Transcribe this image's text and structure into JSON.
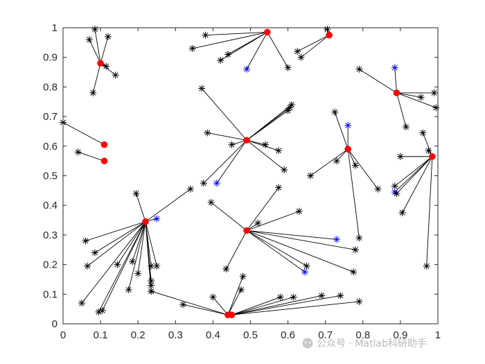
{
  "watermark": {
    "text": "公众号 · Matlab科研助手",
    "icon": "wechat-bubble-icon"
  },
  "colors": {
    "edge": "#000000",
    "node_black": "#000000",
    "node_blue": "#0000ff",
    "center": "#ff0000",
    "axis": "#262626",
    "watermark": "#b9b9b9"
  },
  "chart_data": {
    "type": "scatter",
    "title": "",
    "xlabel": "",
    "ylabel": "",
    "xlim": [
      0,
      1
    ],
    "ylim": [
      0,
      1
    ],
    "xticks": [
      "0",
      "0.1",
      "0.2",
      "0.3",
      "0.4",
      "0.5",
      "0.6",
      "0.7",
      "0.8",
      "0.9",
      "1"
    ],
    "yticks": [
      "0",
      "0.1",
      "0.2",
      "0.3",
      "0.4",
      "0.5",
      "0.6",
      "0.7",
      "0.8",
      "0.9",
      "1"
    ],
    "grid": false,
    "box": true,
    "legend": "none",
    "centers": [
      {
        "x": 0.1,
        "y": 0.88
      },
      {
        "x": 0.545,
        "y": 0.985
      },
      {
        "x": 0.71,
        "y": 0.975
      },
      {
        "x": 0.89,
        "y": 0.78
      },
      {
        "x": 0.49,
        "y": 0.62
      },
      {
        "x": 0.76,
        "y": 0.59
      },
      {
        "x": 0.985,
        "y": 0.565
      },
      {
        "x": 0.11,
        "y": 0.605
      },
      {
        "x": 0.11,
        "y": 0.55
      },
      {
        "x": 0.22,
        "y": 0.345
      },
      {
        "x": 0.49,
        "y": 0.315
      },
      {
        "x": 0.44,
        "y": 0.03
      },
      {
        "x": 0.45,
        "y": 0.03
      }
    ],
    "nodes": [
      {
        "x": 0.07,
        "y": 0.96,
        "c": 0,
        "color": "black"
      },
      {
        "x": 0.085,
        "y": 0.995,
        "c": 0,
        "color": "black"
      },
      {
        "x": 0.12,
        "y": 0.97,
        "c": 0,
        "color": "black"
      },
      {
        "x": 0.115,
        "y": 0.87,
        "c": 0,
        "color": "black"
      },
      {
        "x": 0.14,
        "y": 0.84,
        "c": 0,
        "color": "black"
      },
      {
        "x": 0.08,
        "y": 0.78,
        "c": 0,
        "color": "black"
      },
      {
        "x": 0.38,
        "y": 0.975,
        "c": 1,
        "color": "black"
      },
      {
        "x": 0.345,
        "y": 0.93,
        "c": 1,
        "color": "black"
      },
      {
        "x": 0.44,
        "y": 0.91,
        "c": 1,
        "color": "black"
      },
      {
        "x": 0.42,
        "y": 0.89,
        "c": 1,
        "color": "black"
      },
      {
        "x": 0.49,
        "y": 0.86,
        "c": 1,
        "color": "blue"
      },
      {
        "x": 0.6,
        "y": 0.865,
        "c": 1,
        "color": "black"
      },
      {
        "x": 0.625,
        "y": 0.92,
        "c": 2,
        "color": "black"
      },
      {
        "x": 0.635,
        "y": 0.9,
        "c": 2,
        "color": "black"
      },
      {
        "x": 0.705,
        "y": 0.995,
        "c": 2,
        "color": "black"
      },
      {
        "x": 0.79,
        "y": 0.86,
        "c": 3,
        "color": "black"
      },
      {
        "x": 0.885,
        "y": 0.865,
        "c": 3,
        "color": "blue"
      },
      {
        "x": 0.955,
        "y": 0.765,
        "c": 3,
        "color": "black"
      },
      {
        "x": 0.99,
        "y": 0.78,
        "c": 3,
        "color": "black"
      },
      {
        "x": 0.995,
        "y": 0.73,
        "c": 3,
        "color": "black"
      },
      {
        "x": 0.915,
        "y": 0.665,
        "c": 3,
        "color": "black"
      },
      {
        "x": 0.37,
        "y": 0.795,
        "c": 4,
        "color": "black"
      },
      {
        "x": 0.385,
        "y": 0.645,
        "c": 4,
        "color": "black"
      },
      {
        "x": 0.45,
        "y": 0.605,
        "c": 4,
        "color": "black"
      },
      {
        "x": 0.54,
        "y": 0.605,
        "c": 4,
        "color": "black"
      },
      {
        "x": 0.575,
        "y": 0.585,
        "c": 4,
        "color": "black"
      },
      {
        "x": 0.6,
        "y": 0.72,
        "c": 4,
        "color": "black"
      },
      {
        "x": 0.61,
        "y": 0.74,
        "c": 4,
        "color": "black"
      },
      {
        "x": 0.605,
        "y": 0.73,
        "c": 4,
        "color": "black"
      },
      {
        "x": 0.59,
        "y": 0.52,
        "c": 4,
        "color": "black"
      },
      {
        "x": 0.375,
        "y": 0.475,
        "c": 4,
        "color": "black"
      },
      {
        "x": 0.41,
        "y": 0.475,
        "c": 4,
        "color": "blue"
      },
      {
        "x": 0.725,
        "y": 0.715,
        "c": 5,
        "color": "black"
      },
      {
        "x": 0.76,
        "y": 0.67,
        "c": 5,
        "color": "blue"
      },
      {
        "x": 0.73,
        "y": 0.55,
        "c": 5,
        "color": "black"
      },
      {
        "x": 0.66,
        "y": 0.5,
        "c": 5,
        "color": "black"
      },
      {
        "x": 0.78,
        "y": 0.535,
        "c": 5,
        "color": "black"
      },
      {
        "x": 0.84,
        "y": 0.455,
        "c": 5,
        "color": "black"
      },
      {
        "x": 0.79,
        "y": 0.29,
        "c": 5,
        "color": "black"
      },
      {
        "x": 0.96,
        "y": 0.645,
        "c": 6,
        "color": "black"
      },
      {
        "x": 0.975,
        "y": 0.585,
        "c": 6,
        "color": "black"
      },
      {
        "x": 0.9,
        "y": 0.565,
        "c": 6,
        "color": "black"
      },
      {
        "x": 0.885,
        "y": 0.465,
        "c": 6,
        "color": "black"
      },
      {
        "x": 0.885,
        "y": 0.445,
        "c": 6,
        "color": "blue"
      },
      {
        "x": 0.89,
        "y": 0.44,
        "c": 6,
        "color": "black"
      },
      {
        "x": 0.905,
        "y": 0.375,
        "c": 6,
        "color": "black"
      },
      {
        "x": 0.97,
        "y": 0.195,
        "c": 6,
        "color": "black"
      },
      {
        "x": 0.0,
        "y": 0.68,
        "c": 7,
        "color": "black"
      },
      {
        "x": 0.04,
        "y": 0.58,
        "c": 8,
        "color": "black"
      },
      {
        "x": 0.195,
        "y": 0.44,
        "c": 9,
        "color": "black"
      },
      {
        "x": 0.34,
        "y": 0.455,
        "c": 9,
        "color": "black"
      },
      {
        "x": 0.25,
        "y": 0.355,
        "c": 9,
        "color": "blue"
      },
      {
        "x": 0.06,
        "y": 0.28,
        "c": 9,
        "color": "black"
      },
      {
        "x": 0.085,
        "y": 0.24,
        "c": 9,
        "color": "black"
      },
      {
        "x": 0.065,
        "y": 0.195,
        "c": 9,
        "color": "black"
      },
      {
        "x": 0.145,
        "y": 0.2,
        "c": 9,
        "color": "black"
      },
      {
        "x": 0.185,
        "y": 0.21,
        "c": 9,
        "color": "black"
      },
      {
        "x": 0.2,
        "y": 0.17,
        "c": 9,
        "color": "black"
      },
      {
        "x": 0.235,
        "y": 0.195,
        "c": 9,
        "color": "black"
      },
      {
        "x": 0.25,
        "y": 0.195,
        "c": 9,
        "color": "black"
      },
      {
        "x": 0.235,
        "y": 0.145,
        "c": 9,
        "color": "black"
      },
      {
        "x": 0.235,
        "y": 0.13,
        "c": 9,
        "color": "black"
      },
      {
        "x": 0.235,
        "y": 0.11,
        "c": 9,
        "color": "black"
      },
      {
        "x": 0.175,
        "y": 0.115,
        "c": 9,
        "color": "black"
      },
      {
        "x": 0.05,
        "y": 0.07,
        "c": 9,
        "color": "black"
      },
      {
        "x": 0.095,
        "y": 0.04,
        "c": 9,
        "color": "black"
      },
      {
        "x": 0.105,
        "y": 0.045,
        "c": 9,
        "color": "black"
      },
      {
        "x": 0.395,
        "y": 0.41,
        "c": 10,
        "color": "black"
      },
      {
        "x": 0.575,
        "y": 0.46,
        "c": 10,
        "color": "black"
      },
      {
        "x": 0.63,
        "y": 0.38,
        "c": 10,
        "color": "black"
      },
      {
        "x": 0.52,
        "y": 0.34,
        "c": 10,
        "color": "black"
      },
      {
        "x": 0.73,
        "y": 0.285,
        "c": 10,
        "color": "blue"
      },
      {
        "x": 0.78,
        "y": 0.25,
        "c": 10,
        "color": "black"
      },
      {
        "x": 0.775,
        "y": 0.175,
        "c": 10,
        "color": "black"
      },
      {
        "x": 0.65,
        "y": 0.195,
        "c": 10,
        "color": "black"
      },
      {
        "x": 0.645,
        "y": 0.175,
        "c": 10,
        "color": "blue"
      },
      {
        "x": 0.435,
        "y": 0.185,
        "c": 10,
        "color": "black"
      },
      {
        "x": 0.48,
        "y": 0.16,
        "c": 11,
        "color": "black"
      },
      {
        "x": 0.475,
        "y": 0.115,
        "c": 11,
        "color": "black"
      },
      {
        "x": 0.4,
        "y": 0.09,
        "c": 11,
        "color": "black"
      },
      {
        "x": 0.32,
        "y": 0.065,
        "c": 11,
        "color": "black"
      },
      {
        "x": 0.235,
        "y": 0.11,
        "c": 11,
        "color": "black"
      },
      {
        "x": 0.58,
        "y": 0.09,
        "c": 12,
        "color": "black"
      },
      {
        "x": 0.615,
        "y": 0.09,
        "c": 12,
        "color": "black"
      },
      {
        "x": 0.69,
        "y": 0.095,
        "c": 12,
        "color": "black"
      },
      {
        "x": 0.74,
        "y": 0.095,
        "c": 12,
        "color": "black"
      },
      {
        "x": 0.79,
        "y": 0.075,
        "c": 12,
        "color": "black"
      }
    ]
  }
}
